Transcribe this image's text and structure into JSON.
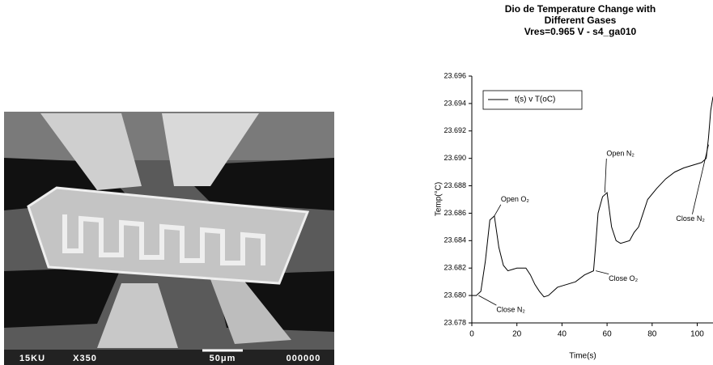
{
  "photo": {
    "labels": [
      "15KU",
      "X350",
      "50μm",
      "000000"
    ]
  },
  "chart_data": {
    "type": "line",
    "title": "Dio de Temperature Change with Different Gases",
    "subtitle": "Vres=0.965 V  - s4_ga010",
    "xlabel": "Time(s)",
    "ylabel": "Temp(°C)",
    "x": [
      0,
      2,
      4,
      6,
      8,
      10,
      12,
      14,
      16,
      20,
      24,
      26,
      28,
      30,
      32,
      34,
      38,
      42,
      46,
      50,
      54,
      55,
      56,
      58,
      60,
      62,
      64,
      66,
      70,
      72,
      74,
      76,
      78,
      82,
      86,
      90,
      94,
      98,
      102,
      104,
      105,
      106,
      107
    ],
    "series": [
      {
        "name": "t(s) v T(oC)",
        "color": "#000000",
        "values": [
          23.68,
          23.68,
          23.6803,
          23.6825,
          23.6855,
          23.6858,
          23.6835,
          23.6822,
          23.6818,
          23.682,
          23.682,
          23.6815,
          23.6808,
          23.6803,
          23.6799,
          23.68,
          23.6806,
          23.6808,
          23.681,
          23.6815,
          23.6818,
          23.6838,
          23.686,
          23.6872,
          23.6875,
          23.685,
          23.684,
          23.6838,
          23.684,
          23.6846,
          23.685,
          23.686,
          23.687,
          23.6878,
          23.6885,
          23.689,
          23.6893,
          23.6895,
          23.6897,
          23.69,
          23.6915,
          23.6935,
          23.6945
        ]
      }
    ],
    "xlim": [
      0,
      107
    ],
    "xticks": [
      0,
      20,
      40,
      60,
      80,
      100
    ],
    "ylim": [
      23.678,
      23.696
    ],
    "yticks": [
      23.678,
      {
        "value": 23.68,
        "label": "23.680"
      },
      23.682,
      23.684,
      23.686,
      23.688,
      {
        "value": 23.69,
        "label": "23.690"
      },
      23.692,
      23.694,
      23.696
    ],
    "annotations": [
      {
        "text": "Open O₂",
        "x": 10,
        "y": 23.6858
      },
      {
        "text": "Close N₂",
        "x": 3,
        "y": 23.68
      },
      {
        "text": "Open N₂",
        "x": 59,
        "y": 23.6875
      },
      {
        "text": "Close O₂",
        "x": 55,
        "y": 23.6818
      },
      {
        "text": "Close N₂",
        "x": 105,
        "y": 23.691
      }
    ]
  }
}
